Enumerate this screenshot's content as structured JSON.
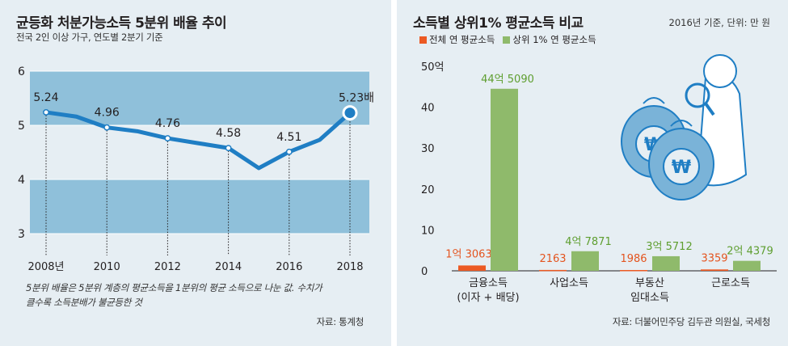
{
  "left": {
    "title": "균등화 처분가능소득 5분위 배율 추이",
    "subtitle": "전국 2인 이상 가구, 연도별 2분기 기준",
    "note_line1": "5분위 배율은 5분위 계층의 평균소득을 1분위의 평균 소득으로 나눈 값. 수치가",
    "note_line2": "클수록 소득분배가 불균등한 것",
    "source": "자료: 통계청"
  },
  "right": {
    "title": "소득별 상위1% 평균소득 비교",
    "meta": "2016년 기준, 단위: 만 원",
    "source": "자료: 더불어민주당 김두관 의원실, 국세청"
  },
  "colors": {
    "background": "#e6eef3",
    "band": "#8fc0da",
    "line": "#1f7ec4",
    "point": "#1f7ec4",
    "top_bar": "#8fba6b",
    "all_bar": "#ec5a24",
    "green_label": "#5e9e2f",
    "orange_label": "#e4541f"
  },
  "icons": {
    "illustration": "money-bags-icon"
  },
  "chart_data": [
    {
      "type": "line",
      "title": "균등화 처분가능소득 5분위 배율 추이",
      "subtitle": "전국 2인 이상 가구, 연도별 2분기 기준",
      "x": [
        2008,
        2009,
        2010,
        2011,
        2012,
        2013,
        2014,
        2015,
        2016,
        2017,
        2018
      ],
      "y": [
        5.24,
        5.16,
        4.96,
        4.89,
        4.76,
        4.67,
        4.58,
        4.21,
        4.51,
        4.73,
        5.23
      ],
      "x_tick_labels": [
        "2008년",
        "2010",
        "2012",
        "2014",
        "2016",
        "2018"
      ],
      "x_ticks": [
        2008,
        2010,
        2012,
        2014,
        2016,
        2018
      ],
      "y_ticks": [
        3,
        4,
        5,
        6
      ],
      "y_tick_labels": [
        "3",
        "4",
        "5",
        "6"
      ],
      "ylim": [
        3,
        6
      ],
      "labeled_points": [
        {
          "x": 2008,
          "label": "5.24"
        },
        {
          "x": 2010,
          "label": "4.96"
        },
        {
          "x": 2012,
          "label": "4.76"
        },
        {
          "x": 2014,
          "label": "4.58"
        },
        {
          "x": 2016,
          "label": "4.51"
        },
        {
          "x": 2018,
          "label": "5.23배"
        }
      ],
      "shaded_bands": [
        [
          5,
          6
        ],
        [
          3,
          4
        ]
      ]
    },
    {
      "type": "bar",
      "title": "소득별 상위1% 평균소득 비교",
      "categories": [
        [
          "금융소득",
          "(이자 + 배당)"
        ],
        [
          "사업소득"
        ],
        [
          "부동산",
          "임대소득"
        ],
        [
          "근로소득"
        ]
      ],
      "series": [
        {
          "name": "전체 연 평균소득",
          "values": [
            13063,
            2163,
            1986,
            3359
          ],
          "labels": [
            "1억 3063",
            "2163",
            "1986",
            "3359"
          ]
        },
        {
          "name": "상위 1% 연 평균소득",
          "values": [
            445090,
            47871,
            35712,
            24379
          ],
          "labels": [
            "44억 5090",
            "4억 7871",
            "3억 5712",
            "2억 4379"
          ]
        }
      ],
      "unit": "만 원",
      "y_ticks": [
        0,
        10,
        20,
        30,
        40,
        50
      ],
      "y_tick_labels": [
        "0",
        "10",
        "20",
        "30",
        "40",
        "50억"
      ],
      "ylim": [
        0,
        50
      ]
    }
  ]
}
